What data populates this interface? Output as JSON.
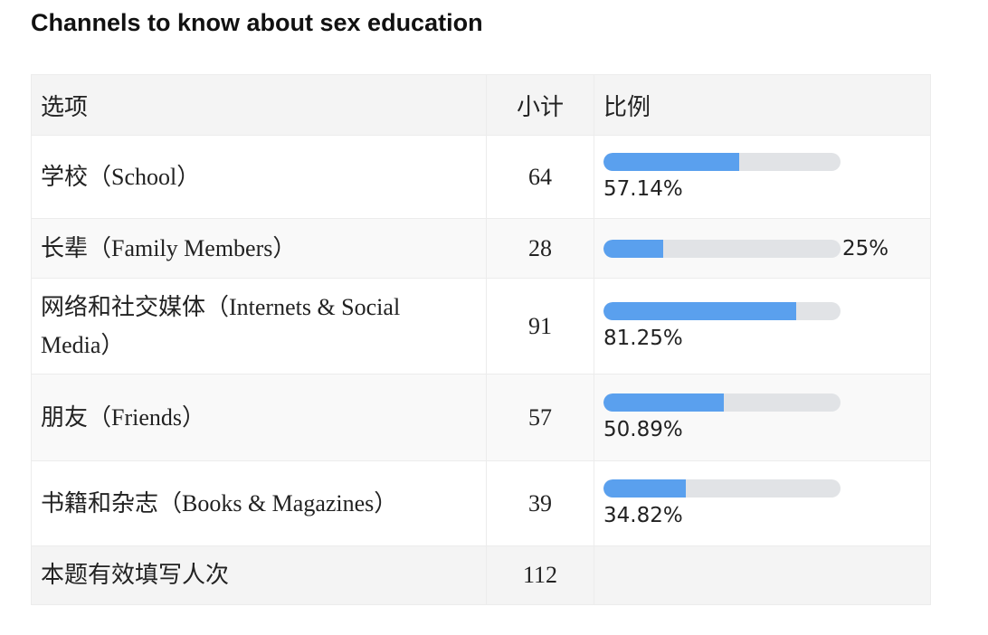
{
  "chart_data": {
    "type": "table",
    "title": "Channels to know about sex education",
    "columns": [
      "选项",
      "小计",
      "比例"
    ],
    "rows": [
      {
        "option": "学校（School）",
        "count": "64",
        "percent": "57.14%",
        "ratio": 0.5714
      },
      {
        "option": "长辈（Family Members）",
        "count": "28",
        "percent": "25%",
        "ratio": 0.25
      },
      {
        "option": "网络和社交媒体（Internets & Social Media）",
        "count": "91",
        "percent": "81.25%",
        "ratio": 0.8125
      },
      {
        "option": "朋友（Friends）",
        "count": "57",
        "percent": "50.89%",
        "ratio": 0.5089
      },
      {
        "option": "书籍和杂志（Books & Magazines）",
        "count": "39",
        "percent": "34.82%",
        "ratio": 0.3482
      }
    ],
    "total": {
      "label": "本题有效填写人次",
      "count": "112"
    }
  },
  "colors": {
    "bar_fill": "#5aa0ee",
    "bar_track": "#e1e3e6"
  }
}
